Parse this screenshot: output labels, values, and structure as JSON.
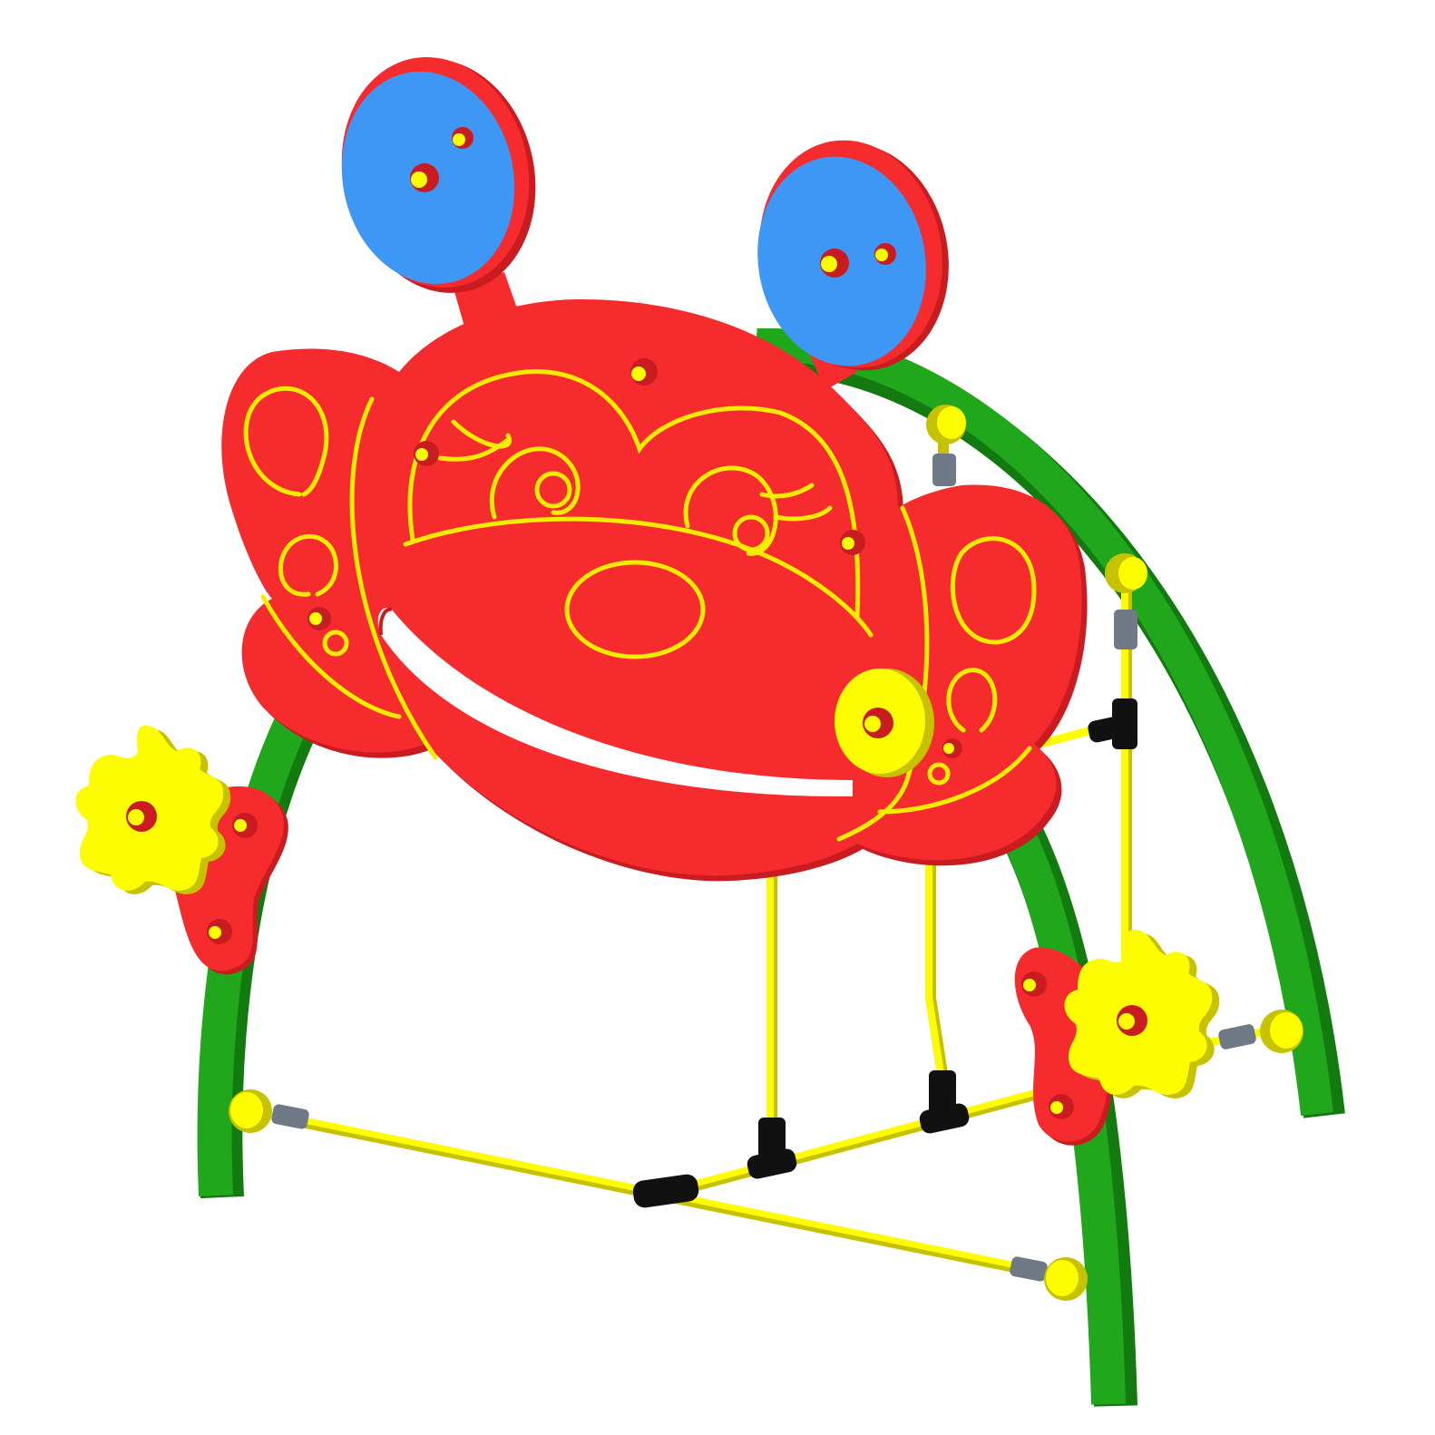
{
  "scene": {
    "subject": "playground-panel",
    "colors": {
      "background": "#ffffff",
      "panel_red": "#f52b2e",
      "panel_red_dark": "#c91c20",
      "ear_blue": "#3f97f5",
      "arch_green": "#21a71c",
      "arch_green_dark": "#137a10",
      "bar_yellow": "#fdfc00",
      "bar_yellow_dark": "#c7c200",
      "clamp_black": "#111111",
      "sleeve_grey": "#6f7a86",
      "line_yellow": "#f7ec00"
    },
    "icons": [
      "gear-wheel-left",
      "gear-wheel-right",
      "spinner-disc",
      "ear-disc-left",
      "ear-disc-right"
    ]
  }
}
